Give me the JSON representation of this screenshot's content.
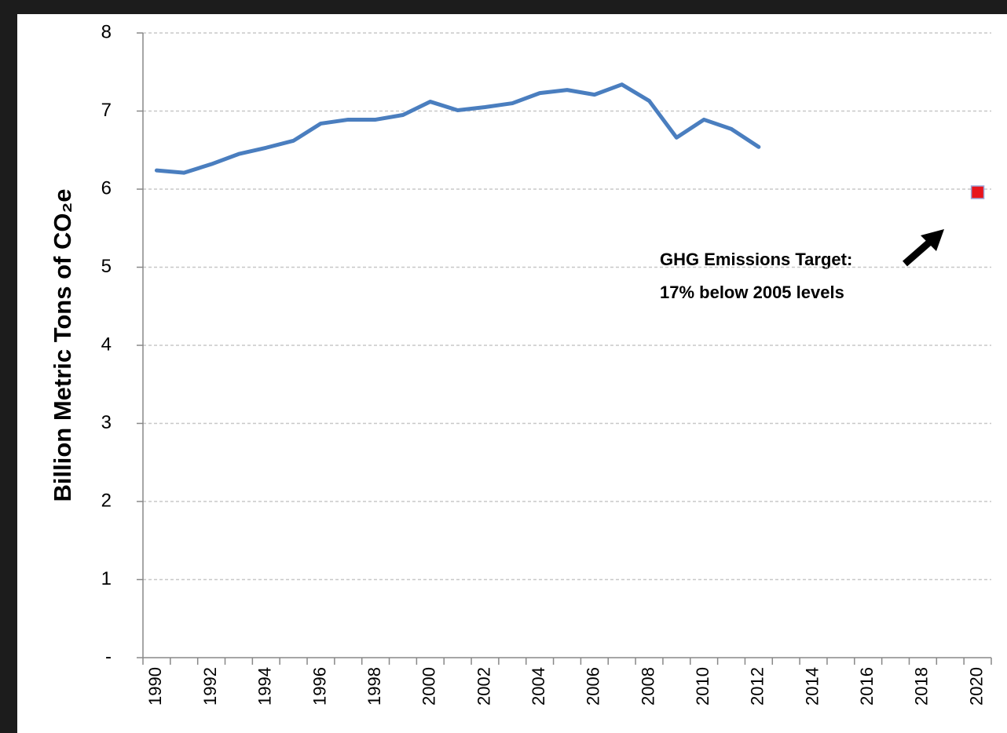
{
  "chart_data": {
    "type": "line",
    "y_label": "Billion Metric Tons of CO₂e",
    "annotation": [
      "GHG Emissions Target:",
      "17% below 2005 levels"
    ],
    "categories": [
      "1990",
      null,
      "1992",
      null,
      "1994",
      null,
      "1996",
      null,
      "1998",
      null,
      "2000",
      null,
      "2002",
      null,
      "2004",
      null,
      "2006",
      null,
      "2008",
      null,
      "2010",
      null,
      "2012",
      null,
      "2014",
      null,
      "2016",
      null,
      "2018",
      null,
      "2020"
    ],
    "series": [
      {
        "color": "#4a7ebf",
        "values": [
          6.24,
          6.21,
          6.32,
          6.45,
          6.53,
          6.62,
          6.84,
          6.89,
          6.89,
          6.95,
          7.12,
          7.01,
          7.05,
          7.1,
          7.23,
          7.27,
          7.21,
          7.34,
          7.13,
          6.66,
          6.89,
          6.77,
          6.54,
          null,
          null,
          null,
          null,
          null,
          null,
          null,
          null
        ]
      },
      {
        "color": "#e8141c",
        "marker": "square",
        "values": [
          null,
          null,
          null,
          null,
          null,
          null,
          null,
          null,
          null,
          null,
          null,
          null,
          null,
          null,
          null,
          null,
          null,
          null,
          null,
          null,
          null,
          null,
          null,
          null,
          null,
          null,
          null,
          null,
          null,
          null,
          5.96
        ]
      }
    ],
    "ylim": [
      0,
      8
    ],
    "yticks": [
      {
        "value": 0,
        "label": "-"
      },
      1,
      2,
      3,
      4,
      5,
      6,
      7,
      8
    ],
    "grid": true
  }
}
